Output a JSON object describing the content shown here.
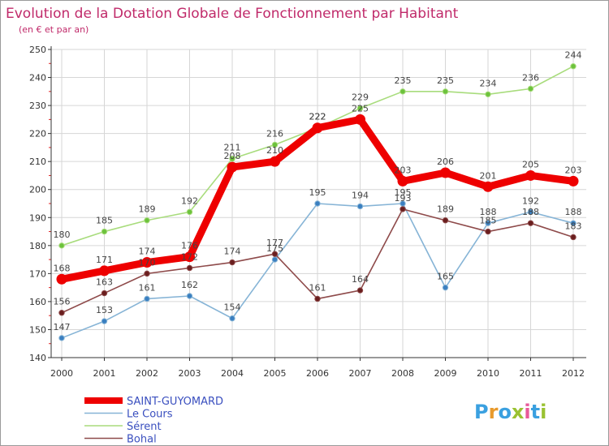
{
  "chart_data": {
    "type": "line",
    "title": "Evolution de la Dotation Globale de Fonctionnement par Habitant",
    "subtitle": "(en € et par an)",
    "xlabel": "",
    "ylabel": "",
    "ylim": [
      140,
      250
    ],
    "yticks": [
      140,
      150,
      160,
      170,
      180,
      190,
      200,
      210,
      220,
      230,
      240,
      250
    ],
    "categories": [
      "2000",
      "2001",
      "2002",
      "2003",
      "2004",
      "2005",
      "2006",
      "2007",
      "2008",
      "2009",
      "2010",
      "2011",
      "2012"
    ],
    "series": [
      {
        "name": "Sérent",
        "color": "#a8dc7c",
        "marker": "#6cc23c",
        "values": [
          180,
          185,
          189,
          192,
          211,
          216,
          222,
          229,
          235,
          235,
          234,
          236,
          244
        ]
      },
      {
        "name": "Le Cours",
        "color": "#86b4d6",
        "marker": "#3a7fc0",
        "values": [
          147,
          153,
          161,
          162,
          154,
          175,
          195,
          194,
          195,
          165,
          188,
          192,
          188
        ]
      },
      {
        "name": "Bohal",
        "color": "#8e4a4a",
        "marker": "#6a1e1e",
        "values": [
          156,
          163,
          170,
          172,
          174,
          177,
          161,
          164,
          193,
          189,
          185,
          188,
          183
        ]
      },
      {
        "name": "SAINT-GUYOMARD",
        "color": "#ee0000",
        "marker": "#ee0000",
        "bold": true,
        "values": [
          168,
          171,
          174,
          176,
          208,
          210,
          222,
          225,
          203,
          206,
          201,
          205,
          203
        ]
      }
    ],
    "legend": [
      "SAINT-GUYOMARD",
      "Le Cours",
      "Sérent",
      "Bohal"
    ]
  },
  "brand": {
    "letters": [
      "P",
      "r",
      "o",
      "x",
      "i",
      "t",
      "i"
    ],
    "colors": [
      "#3aa0e0",
      "#e89a2c",
      "#3aa0e0",
      "#9ac232",
      "#e85a9a",
      "#3aa0e0",
      "#9ac232"
    ]
  }
}
